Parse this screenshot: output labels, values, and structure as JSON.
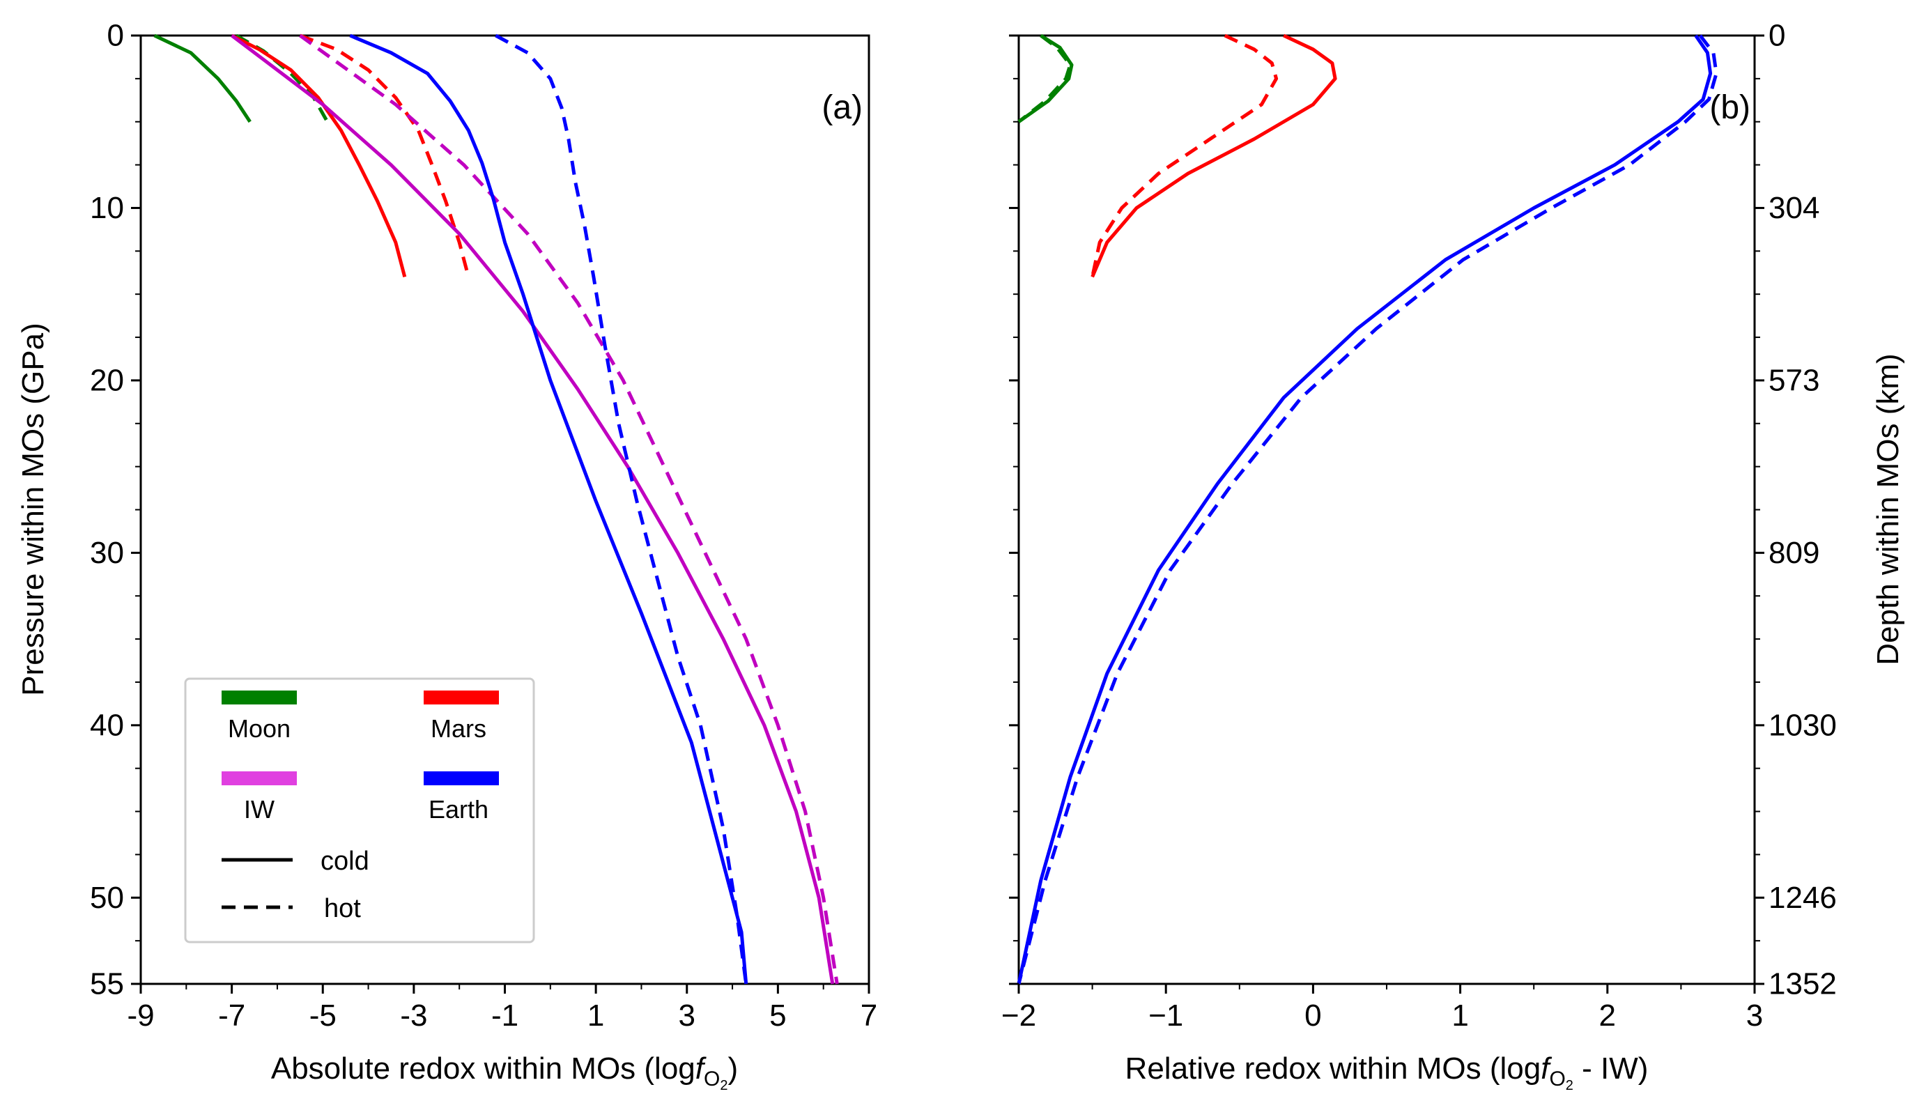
{
  "chart_data": [
    {
      "type": "line",
      "panel_label": "(a)",
      "xlabel": "Absolute redox within MOs (log",
      "xlabel_f": "f",
      "xlabel_sub": "O",
      "xlabel_subsub": "2",
      "xlabel_end": ")",
      "ylabel": "Pressure within MOs (GPa)",
      "xlim": [
        -9,
        7
      ],
      "ylim": [
        55,
        0
      ],
      "y_inverted": true,
      "xticks": [
        -9,
        -7,
        -5,
        -3,
        -1,
        1,
        3,
        5,
        7
      ],
      "xtick_labels": [
        "-9",
        "-7",
        "-5",
        "-3",
        "-1",
        "1",
        "3",
        "5",
        "7"
      ],
      "yticks": [
        0,
        10,
        20,
        30,
        40,
        50,
        55
      ],
      "ytick_labels": [
        "0",
        "10",
        "20",
        "30",
        "40",
        "50",
        "55"
      ],
      "series": [
        {
          "name": "Moon cold",
          "color": "#008000",
          "style": "solid",
          "points": [
            [
              -8.7,
              0
            ],
            [
              -7.9,
              1
            ],
            [
              -7.3,
              2.5
            ],
            [
              -6.9,
              3.8
            ],
            [
              -6.6,
              5
            ]
          ]
        },
        {
          "name": "Moon hot",
          "color": "#008000",
          "style": "dashed",
          "points": [
            [
              -6.9,
              0
            ],
            [
              -6.3,
              0.9
            ],
            [
              -5.7,
              2.2
            ],
            [
              -5.2,
              3.6
            ],
            [
              -4.9,
              5
            ]
          ]
        },
        {
          "name": "Mars cold",
          "color": "#ff0000",
          "style": "solid",
          "points": [
            [
              -7.0,
              0
            ],
            [
              -6.4,
              0.8
            ],
            [
              -5.7,
              2.0
            ],
            [
              -5.1,
              3.6
            ],
            [
              -4.6,
              5.5
            ],
            [
              -4.2,
              7.5
            ],
            [
              -3.8,
              9.6
            ],
            [
              -3.4,
              12
            ],
            [
              -3.2,
              14
            ]
          ]
        },
        {
          "name": "Mars hot",
          "color": "#ff0000",
          "style": "dashed",
          "points": [
            [
              -5.5,
              0
            ],
            [
              -4.7,
              0.8
            ],
            [
              -4.0,
              2.0
            ],
            [
              -3.4,
              3.6
            ],
            [
              -2.9,
              5.5
            ],
            [
              -2.6,
              7.5
            ],
            [
              -2.3,
              9.6
            ],
            [
              -2.0,
              12
            ],
            [
              -1.8,
              14
            ]
          ]
        },
        {
          "name": "IW cold",
          "color": "#c000c0",
          "style": "solid",
          "points": [
            [
              -7.0,
              0
            ],
            [
              -5.0,
              4
            ],
            [
              -3.5,
              7.5
            ],
            [
              -2.0,
              11.5
            ],
            [
              -0.6,
              16
            ],
            [
              0.6,
              20.5
            ],
            [
              1.7,
              25
            ],
            [
              2.8,
              30
            ],
            [
              3.8,
              35
            ],
            [
              4.7,
              40
            ],
            [
              5.4,
              45
            ],
            [
              5.9,
              50
            ],
            [
              6.2,
              55
            ]
          ]
        },
        {
          "name": "IW hot",
          "color": "#c000c0",
          "style": "dashed",
          "points": [
            [
              -5.5,
              0
            ],
            [
              -3.4,
              4
            ],
            [
              -1.9,
              7.5
            ],
            [
              -0.5,
              11.5
            ],
            [
              0.6,
              15.5
            ],
            [
              1.6,
              20
            ],
            [
              2.5,
              25
            ],
            [
              3.4,
              30
            ],
            [
              4.3,
              35
            ],
            [
              5.0,
              40
            ],
            [
              5.6,
              45
            ],
            [
              6.0,
              50
            ],
            [
              6.3,
              55
            ]
          ]
        },
        {
          "name": "Earth cold",
          "color": "#0000ff",
          "style": "solid",
          "points": [
            [
              -4.4,
              0
            ],
            [
              -3.5,
              1
            ],
            [
              -2.7,
              2.2
            ],
            [
              -2.2,
              3.8
            ],
            [
              -1.8,
              5.5
            ],
            [
              -1.5,
              7.4
            ],
            [
              -1.25,
              9.5
            ],
            [
              -1.0,
              12
            ],
            [
              -0.6,
              15
            ],
            [
              0,
              20
            ],
            [
              1.0,
              27
            ],
            [
              2.0,
              33.5
            ],
            [
              3.1,
              41
            ],
            [
              3.8,
              48
            ],
            [
              4.2,
              52
            ],
            [
              4.3,
              55
            ]
          ]
        },
        {
          "name": "Earth hot",
          "color": "#0000ff",
          "style": "dashed",
          "points": [
            [
              -1.2,
              0
            ],
            [
              -0.5,
              1
            ],
            [
              0,
              2.5
            ],
            [
              0.25,
              4.2
            ],
            [
              0.4,
              6
            ],
            [
              0.55,
              8.5
            ],
            [
              0.75,
              11
            ],
            [
              0.95,
              14
            ],
            [
              1.2,
              18
            ],
            [
              1.5,
              22.5
            ],
            [
              1.9,
              27
            ],
            [
              2.3,
              31
            ],
            [
              2.8,
              36
            ],
            [
              3.3,
              40
            ],
            [
              3.8,
              46
            ],
            [
              4.1,
              51
            ],
            [
              4.3,
              55
            ]
          ]
        }
      ],
      "legend": {
        "position": "lower-left",
        "entries": [
          {
            "label": "Moon",
            "color": "#008000"
          },
          {
            "label": "Mars",
            "color": "#ff0000"
          },
          {
            "label": "IW",
            "color": "#e040e0"
          },
          {
            "label": "Earth",
            "color": "#0000ff"
          },
          {
            "label": "cold",
            "style": "solid",
            "color": "#000000"
          },
          {
            "label": "hot",
            "style": "dashed",
            "color": "#000000"
          }
        ]
      }
    },
    {
      "type": "line",
      "panel_label": "(b)",
      "xlabel": "Relative redox within MOs (log",
      "xlabel_f": "f",
      "xlabel_sub": "O",
      "xlabel_subsub": "2",
      "xlabel_end": " - IW)",
      "ylabel_right": "Depth within MOs  (km)",
      "xlim": [
        -2,
        3
      ],
      "ylim": [
        55,
        0
      ],
      "y_inverted": true,
      "xticks": [
        -2,
        -1,
        0,
        1,
        2,
        3
      ],
      "xtick_labels": [
        "−2",
        "−1",
        "0",
        "1",
        "2",
        "3"
      ],
      "right_ticks_at_pressure": [
        0,
        10,
        20,
        30,
        40,
        50,
        55
      ],
      "right_tick_labels": [
        "0",
        "304",
        "573",
        "809",
        "1030",
        "1246",
        "1352"
      ],
      "series": [
        {
          "name": "Moon cold",
          "color": "#008000",
          "style": "solid",
          "points": [
            [
              -1.85,
              0
            ],
            [
              -1.72,
              0.7
            ],
            [
              -1.64,
              1.7
            ],
            [
              -1.66,
              2.5
            ],
            [
              -1.8,
              3.8
            ],
            [
              -2.0,
              5
            ]
          ]
        },
        {
          "name": "Moon hot",
          "color": "#008000",
          "style": "dashed",
          "points": [
            [
              -1.85,
              0
            ],
            [
              -1.74,
              0.7
            ],
            [
              -1.65,
              1.7
            ],
            [
              -1.68,
              2.5
            ],
            [
              -1.82,
              3.8
            ],
            [
              -2.0,
              5
            ]
          ]
        },
        {
          "name": "Mars cold",
          "color": "#ff0000",
          "style": "solid",
          "points": [
            [
              -0.2,
              0
            ],
            [
              0,
              0.8
            ],
            [
              0.13,
              1.6
            ],
            [
              0.15,
              2.5
            ],
            [
              0,
              4
            ],
            [
              -0.4,
              6
            ],
            [
              -0.85,
              8
            ],
            [
              -1.2,
              10
            ],
            [
              -1.4,
              12
            ],
            [
              -1.5,
              14
            ]
          ]
        },
        {
          "name": "Mars hot",
          "color": "#ff0000",
          "style": "dashed",
          "points": [
            [
              -0.6,
              0
            ],
            [
              -0.4,
              0.8
            ],
            [
              -0.28,
              1.6
            ],
            [
              -0.25,
              2.5
            ],
            [
              -0.35,
              4
            ],
            [
              -0.7,
              6
            ],
            [
              -1.05,
              8
            ],
            [
              -1.3,
              10
            ],
            [
              -1.45,
              12
            ],
            [
              -1.5,
              14
            ]
          ]
        },
        {
          "name": "Earth cold",
          "color": "#0000ff",
          "style": "solid",
          "points": [
            [
              2.6,
              0
            ],
            [
              2.68,
              1
            ],
            [
              2.7,
              2.2
            ],
            [
              2.65,
              3.7
            ],
            [
              2.48,
              5
            ],
            [
              2.05,
              7.5
            ],
            [
              1.5,
              10
            ],
            [
              0.9,
              13
            ],
            [
              0.3,
              17
            ],
            [
              -0.2,
              21
            ],
            [
              -0.65,
              26
            ],
            [
              -1.05,
              31
            ],
            [
              -1.4,
              37
            ],
            [
              -1.65,
              43
            ],
            [
              -1.85,
              49
            ],
            [
              -2.0,
              55
            ]
          ]
        },
        {
          "name": "Earth hot",
          "color": "#0000ff",
          "style": "dashed",
          "points": [
            [
              2.63,
              0
            ],
            [
              2.72,
              1
            ],
            [
              2.74,
              2.2
            ],
            [
              2.69,
              3.7
            ],
            [
              2.53,
              5
            ],
            [
              2.15,
              7.5
            ],
            [
              1.62,
              10
            ],
            [
              1.02,
              13
            ],
            [
              0.43,
              17
            ],
            [
              -0.08,
              21
            ],
            [
              -0.55,
              26
            ],
            [
              -0.97,
              31
            ],
            [
              -1.33,
              37
            ],
            [
              -1.6,
              43
            ],
            [
              -1.82,
              49
            ],
            [
              -2.0,
              55
            ]
          ]
        }
      ]
    }
  ]
}
